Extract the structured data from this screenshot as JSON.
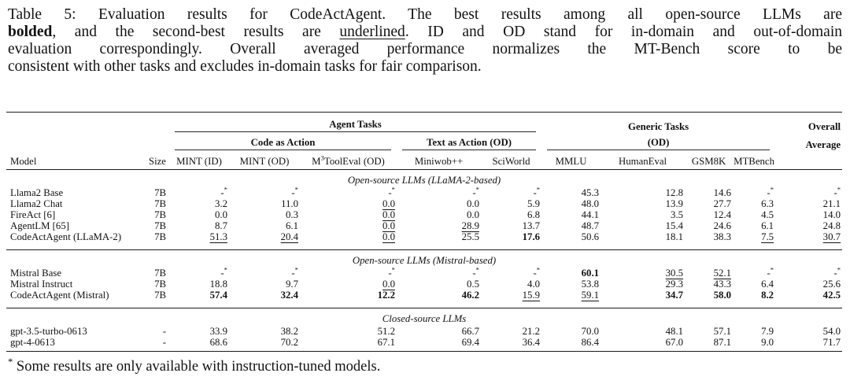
{
  "caption": {
    "lines": [
      [
        {
          "text": "Table 5: Evaluation results for CodeActAgent. The best results among all open-source LLMs are",
          "style": ""
        }
      ],
      [
        {
          "text": "bolded",
          "style": "b"
        },
        {
          "text": ", and the second-best results are ",
          "style": ""
        },
        {
          "text": "underlined",
          "style": "u"
        },
        {
          "text": ". ID and OD stand for in-domain and out-of-domain",
          "style": ""
        }
      ],
      [
        {
          "text": "evaluation correspondingly. Overall averaged performance normalizes the MT-Bench score to be",
          "style": ""
        }
      ],
      [
        {
          "text": "consistent with other tasks and excludes in-domain tasks for fair comparison.",
          "style": ""
        }
      ]
    ]
  },
  "table": {
    "groups": {
      "agent_tasks": "Agent Tasks",
      "generic_tasks": "Generic Tasks",
      "overall": "Overall",
      "code_as_action": "Code as Action",
      "text_as_action": "Text as Action (OD)",
      "od": "(OD)",
      "average": "Average"
    },
    "columns": [
      "Model",
      "Size",
      "MINT (ID)",
      "MINT (OD)",
      "M^3ToolEval (OD)",
      "Miniwob++",
      "SciWorld",
      "MMLU",
      "HumanEval",
      "GSM8K",
      "MTBench"
    ],
    "sections": [
      {
        "label": "Open-source LLMs (LLaMA-2-based)",
        "rows": [
          {
            "model": "Llama2 Base",
            "size": "7B",
            "values": [
              "-*",
              "-*",
              "-*",
              "-*",
              "-*",
              "45.3",
              "12.8",
              "14.6",
              "-*",
              "-*"
            ],
            "fmt": [
              "",
              "",
              "",
              "",
              "",
              "",
              "",
              "",
              "",
              ""
            ]
          },
          {
            "model": "Llama2 Chat",
            "size": "7B",
            "values": [
              "3.2",
              "11.0",
              "0.0",
              "0.0",
              "5.9",
              "48.0",
              "13.9",
              "27.7",
              "6.3",
              "21.1"
            ],
            "fmt": [
              "",
              "",
              "u",
              "",
              "",
              "",
              "",
              "",
              "",
              ""
            ]
          },
          {
            "model": "FireAct [6]",
            "size": "7B",
            "values": [
              "0.0",
              "0.3",
              "0.0",
              "0.0",
              "6.8",
              "44.1",
              "3.5",
              "12.4",
              "4.5",
              "14.0"
            ],
            "fmt": [
              "",
              "",
              "u",
              "",
              "",
              "",
              "",
              "",
              "",
              ""
            ]
          },
          {
            "model": "AgentLM [65]",
            "size": "7B",
            "values": [
              "8.7",
              "6.1",
              "0.0",
              "28.9",
              "13.7",
              "48.7",
              "15.4",
              "24.6",
              "6.1",
              "24.8"
            ],
            "fmt": [
              "",
              "",
              "u",
              "u",
              "",
              "",
              "",
              "",
              "",
              ""
            ]
          },
          {
            "model": "CodeActAgent (LLaMA-2)",
            "size": "7B",
            "values": [
              "51.3",
              "20.4",
              "0.0",
              "25.5",
              "17.6",
              "50.6",
              "18.1",
              "38.3",
              "7.5",
              "30.7"
            ],
            "fmt": [
              "u",
              "u",
              "u",
              "",
              "b",
              "",
              "",
              "",
              "u",
              "u"
            ]
          }
        ]
      },
      {
        "label": "Open-source LLMs (Mistral-based)",
        "rows": [
          {
            "model": "Mistral Base",
            "size": "7B",
            "values": [
              "-*",
              "-*",
              "-*",
              "-*",
              "-*",
              "60.1",
              "30.5",
              "52.1",
              "-*",
              "-*"
            ],
            "fmt": [
              "",
              "",
              "",
              "",
              "",
              "b",
              "u",
              "u",
              "",
              ""
            ]
          },
          {
            "model": "Mistral Instruct",
            "size": "7B",
            "values": [
              "18.8",
              "9.7",
              "0.0",
              "0.5",
              "4.0",
              "53.8",
              "29.3",
              "43.3",
              "6.4",
              "25.6"
            ],
            "fmt": [
              "",
              "",
              "u",
              "",
              "",
              "",
              "",
              "",
              "",
              ""
            ]
          },
          {
            "model": "CodeActAgent (Mistral)",
            "size": "7B",
            "values": [
              "57.4",
              "32.4",
              "12.2",
              "46.2",
              "15.9",
              "59.1",
              "34.7",
              "58.0",
              "8.2",
              "42.5"
            ],
            "fmt": [
              "b",
              "b",
              "b",
              "b",
              "u",
              "u",
              "b",
              "b",
              "b",
              "b"
            ]
          }
        ]
      },
      {
        "label": "Closed-source LLMs",
        "rows": [
          {
            "model": "gpt-3.5-turbo-0613",
            "size": "-",
            "values": [
              "33.9",
              "38.2",
              "51.2",
              "66.7",
              "21.2",
              "70.0",
              "48.1",
              "57.1",
              "7.9",
              "54.0"
            ],
            "fmt": [
              "",
              "",
              "",
              "",
              "",
              "",
              "",
              "",
              "",
              ""
            ]
          },
          {
            "model": "gpt-4-0613",
            "size": "-",
            "values": [
              "68.6",
              "70.2",
              "67.1",
              "69.4",
              "36.4",
              "86.4",
              "67.0",
              "87.1",
              "9.0",
              "71.7"
            ],
            "fmt": [
              "",
              "",
              "",
              "",
              "",
              "",
              "",
              "",
              "",
              ""
            ]
          }
        ]
      }
    ],
    "footnote": {
      "sup": "*",
      "text": "Some results are only available with instruction-tuned models."
    }
  }
}
